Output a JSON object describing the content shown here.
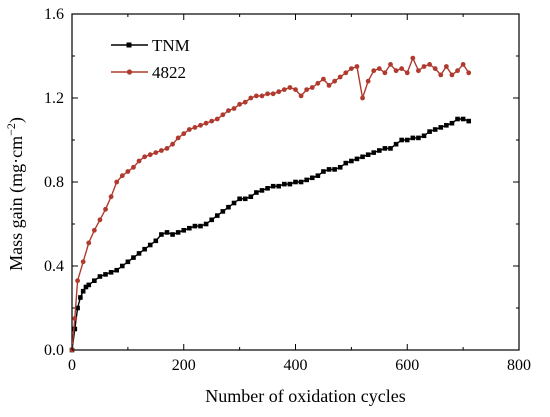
{
  "chart_data": {
    "type": "line",
    "xlabel": "Number of oxidation cycles",
    "ylabel": "Mass gain (mg·cm",
    "ylabel_sup": "−2",
    "ylabel_close": ")",
    "xlim": [
      0,
      800
    ],
    "ylim": [
      0.0,
      1.6
    ],
    "xticks": [
      0,
      200,
      400,
      600,
      800
    ],
    "yticks": [
      0.0,
      0.4,
      0.8,
      1.2,
      1.6
    ],
    "xtick_labels": [
      "0",
      "200",
      "400",
      "600",
      "800"
    ],
    "ytick_labels": [
      "0.0",
      "0.4",
      "0.8",
      "1.2",
      "1.6"
    ],
    "grid": false,
    "legend_position": "top-left",
    "series": [
      {
        "name": "TNM",
        "color": "#000000",
        "marker": "square",
        "x": [
          0,
          5,
          10,
          15,
          20,
          25,
          30,
          40,
          50,
          60,
          70,
          80,
          90,
          100,
          110,
          120,
          130,
          140,
          150,
          160,
          170,
          180,
          190,
          200,
          210,
          220,
          230,
          240,
          250,
          260,
          270,
          280,
          290,
          300,
          310,
          320,
          330,
          340,
          350,
          360,
          370,
          380,
          390,
          400,
          410,
          420,
          430,
          440,
          450,
          460,
          470,
          480,
          490,
          500,
          510,
          520,
          530,
          540,
          550,
          560,
          570,
          580,
          590,
          600,
          610,
          620,
          630,
          640,
          650,
          660,
          670,
          680,
          690,
          700,
          710
        ],
        "y": [
          0.0,
          0.1,
          0.2,
          0.25,
          0.28,
          0.3,
          0.31,
          0.33,
          0.35,
          0.36,
          0.37,
          0.38,
          0.4,
          0.42,
          0.44,
          0.46,
          0.48,
          0.5,
          0.52,
          0.55,
          0.56,
          0.55,
          0.56,
          0.57,
          0.58,
          0.59,
          0.59,
          0.6,
          0.62,
          0.64,
          0.66,
          0.68,
          0.7,
          0.72,
          0.72,
          0.73,
          0.75,
          0.76,
          0.77,
          0.78,
          0.78,
          0.79,
          0.79,
          0.8,
          0.8,
          0.81,
          0.82,
          0.83,
          0.85,
          0.86,
          0.86,
          0.87,
          0.89,
          0.9,
          0.91,
          0.92,
          0.93,
          0.94,
          0.95,
          0.96,
          0.96,
          0.98,
          1.0,
          1.0,
          1.01,
          1.01,
          1.02,
          1.04,
          1.05,
          1.06,
          1.07,
          1.08,
          1.1,
          1.1,
          1.09
        ]
      },
      {
        "name": "4822",
        "color": "#b03a2e",
        "marker": "circle",
        "x": [
          0,
          5,
          10,
          20,
          30,
          40,
          50,
          60,
          70,
          80,
          90,
          100,
          110,
          120,
          130,
          140,
          150,
          160,
          170,
          180,
          190,
          200,
          210,
          220,
          230,
          240,
          250,
          260,
          270,
          280,
          290,
          300,
          310,
          320,
          330,
          340,
          350,
          360,
          370,
          380,
          390,
          400,
          410,
          420,
          430,
          440,
          450,
          460,
          470,
          480,
          490,
          500,
          510,
          520,
          530,
          540,
          550,
          560,
          570,
          580,
          590,
          600,
          610,
          620,
          630,
          640,
          650,
          660,
          670,
          680,
          690,
          700,
          710
        ],
        "y": [
          0.0,
          0.15,
          0.33,
          0.42,
          0.51,
          0.57,
          0.62,
          0.67,
          0.73,
          0.8,
          0.83,
          0.85,
          0.87,
          0.9,
          0.92,
          0.93,
          0.94,
          0.95,
          0.96,
          0.98,
          1.01,
          1.03,
          1.05,
          1.06,
          1.07,
          1.08,
          1.09,
          1.1,
          1.12,
          1.14,
          1.15,
          1.17,
          1.18,
          1.2,
          1.21,
          1.21,
          1.22,
          1.22,
          1.23,
          1.24,
          1.25,
          1.24,
          1.21,
          1.24,
          1.25,
          1.27,
          1.29,
          1.26,
          1.28,
          1.3,
          1.32,
          1.34,
          1.35,
          1.2,
          1.28,
          1.33,
          1.34,
          1.32,
          1.36,
          1.33,
          1.34,
          1.32,
          1.39,
          1.33,
          1.35,
          1.36,
          1.34,
          1.31,
          1.35,
          1.31,
          1.33,
          1.36,
          1.32
        ]
      }
    ]
  }
}
